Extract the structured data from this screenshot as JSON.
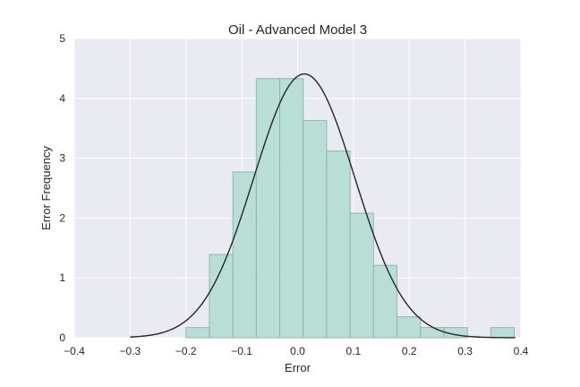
{
  "chart_data": {
    "type": "bar",
    "title": "Oil - Advanced Model 3",
    "xlabel": "Error",
    "ylabel": "Error Frequency",
    "xlim": [
      -0.4,
      0.4
    ],
    "ylim": [
      0,
      5
    ],
    "xticks": [
      "−0.4",
      "−0.3",
      "−0.2",
      "−0.1",
      "0.0",
      "0.1",
      "0.2",
      "0.3",
      "0.4"
    ],
    "xtick_values": [
      -0.4,
      -0.3,
      -0.2,
      -0.1,
      0.0,
      0.1,
      0.2,
      0.3,
      0.4
    ],
    "yticks": [
      "0",
      "1",
      "2",
      "3",
      "4",
      "5"
    ],
    "ytick_values": [
      0,
      1,
      2,
      3,
      4,
      5
    ],
    "grid": true,
    "histogram": {
      "bins": [
        {
          "x0": -0.2,
          "x1": -0.158,
          "value": 0.17
        },
        {
          "x0": -0.158,
          "x1": -0.116,
          "value": 1.39
        },
        {
          "x0": -0.116,
          "x1": -0.074,
          "value": 2.77
        },
        {
          "x0": -0.074,
          "x1": -0.032,
          "value": 4.33
        },
        {
          "x0": -0.032,
          "x1": 0.01,
          "value": 4.33
        },
        {
          "x0": 0.01,
          "x1": 0.052,
          "value": 3.63
        },
        {
          "x0": 0.052,
          "x1": 0.094,
          "value": 3.12
        },
        {
          "x0": 0.094,
          "x1": 0.136,
          "value": 2.08
        },
        {
          "x0": 0.136,
          "x1": 0.178,
          "value": 1.21
        },
        {
          "x0": 0.178,
          "x1": 0.22,
          "value": 0.35
        },
        {
          "x0": 0.22,
          "x1": 0.262,
          "value": 0.17
        },
        {
          "x0": 0.262,
          "x1": 0.304,
          "value": 0.17
        },
        {
          "x0": 0.304,
          "x1": 0.346,
          "value": 0
        },
        {
          "x0": 0.346,
          "x1": 0.388,
          "value": 0.17
        }
      ],
      "fill": "#b3ddd3",
      "edge": "#8fb8ad"
    },
    "density_curve": {
      "mean": 0.012,
      "std": 0.0905,
      "x_range": [
        -0.3,
        0.39
      ],
      "color": "#262626"
    },
    "colors": {
      "plot_background": "#eaeaf2",
      "grid": "#ffffff",
      "text": "#262626"
    }
  }
}
